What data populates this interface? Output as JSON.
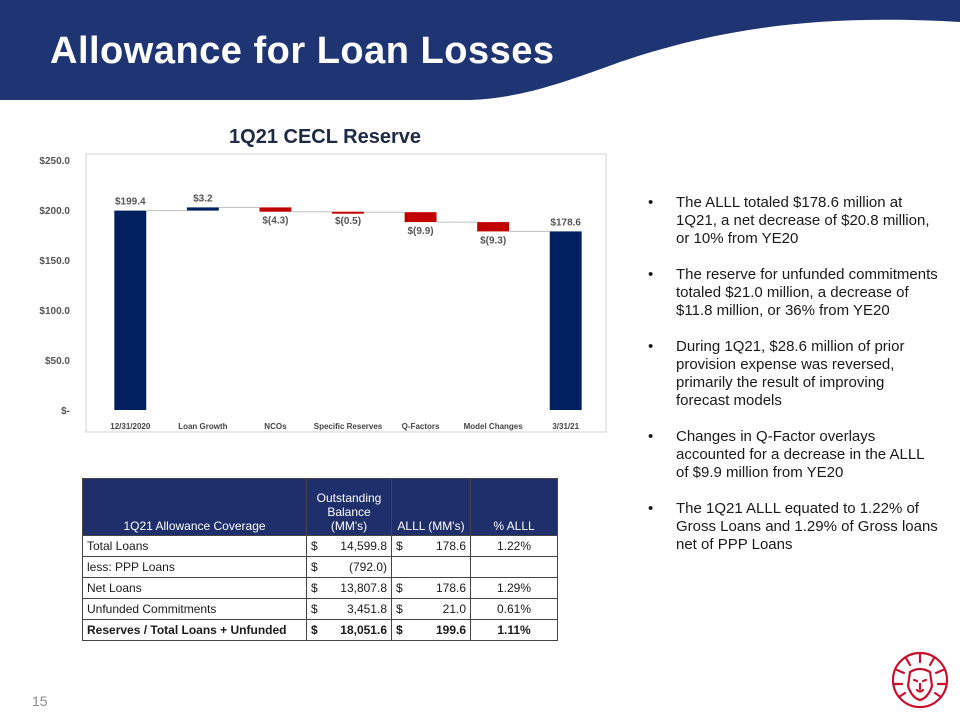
{
  "slide_title": "Allowance for Loan Losses",
  "page_number": "15",
  "colors": {
    "navy": "#002060",
    "red": "#c00000",
    "header": "#1f3472",
    "logo": "#c8102e"
  },
  "chart_data": {
    "type": "bar",
    "subtype": "waterfall",
    "title": "1Q21 CECL Reserve",
    "categories": [
      "12/31/2020",
      "Loan Growth",
      "NCOs",
      "Specific Reserves",
      "Q-Factors",
      "Model Changes",
      "3/31/21"
    ],
    "values": [
      199.4,
      3.2,
      -4.3,
      -0.5,
      -9.9,
      -9.3,
      178.6
    ],
    "data_labels": [
      "$199.4",
      "$3.2",
      "$(4.3)",
      "$(0.5)",
      "$(9.9)",
      "$(9.3)",
      "$178.6"
    ],
    "kinds": [
      "total",
      "increase",
      "decrease",
      "decrease",
      "decrease",
      "decrease",
      "total"
    ],
    "y_ticks": [
      0,
      50,
      100,
      150,
      200,
      250
    ],
    "y_tick_labels": [
      "$-",
      "$50.0",
      "$100.0",
      "$150.0",
      "$200.0",
      "$250.0"
    ],
    "ylim": [
      0,
      250
    ],
    "grid": false,
    "legend": "none"
  },
  "bullets": [
    "The ALLL totaled $178.6 million at 1Q21, a net decrease of $20.8 million, or 10% from YE20",
    "The reserve for unfunded commitments totaled $21.0 million, a decrease of $11.8 million, or 36% from YE20",
    "During 1Q21, $28.6 million of prior provision expense was reversed, primarily the result of improving forecast models",
    "Changes in Q-Factor overlays accounted for a decrease in the ALLL of $9.9 million from YE20",
    "The 1Q21 ALLL equated to 1.22% of Gross Loans and 1.29% of Gross loans net of PPP Loans"
  ],
  "table": {
    "headers": {
      "label": "1Q21 Allowance Coverage",
      "balance": "Outstanding Balance (MM's)",
      "alll": "ALLL (MM's)",
      "pct": "% ALLL"
    },
    "rows": [
      {
        "label": "Total Loans",
        "bal_cur": "$",
        "balance": "14,599.8",
        "alll_cur": "$",
        "alll": "178.6",
        "pct": "1.22%"
      },
      {
        "label": "less: PPP Loans",
        "bal_cur": "$",
        "balance": "(792.0)",
        "alll_cur": "",
        "alll": "",
        "pct": ""
      },
      {
        "label": "Net Loans",
        "bal_cur": "$",
        "balance": "13,807.8",
        "alll_cur": "$",
        "alll": "178.6",
        "pct": "1.29%"
      },
      {
        "label": "Unfunded Commitments",
        "bal_cur": "$",
        "balance": "3,451.8",
        "alll_cur": "$",
        "alll": "21.0",
        "pct": "0.61%"
      },
      {
        "label": "Reserves / Total Loans + Unfunded",
        "bal_cur": "$",
        "balance": "18,051.6",
        "alll_cur": "$",
        "alll": "199.6",
        "pct": "1.11%"
      }
    ]
  }
}
